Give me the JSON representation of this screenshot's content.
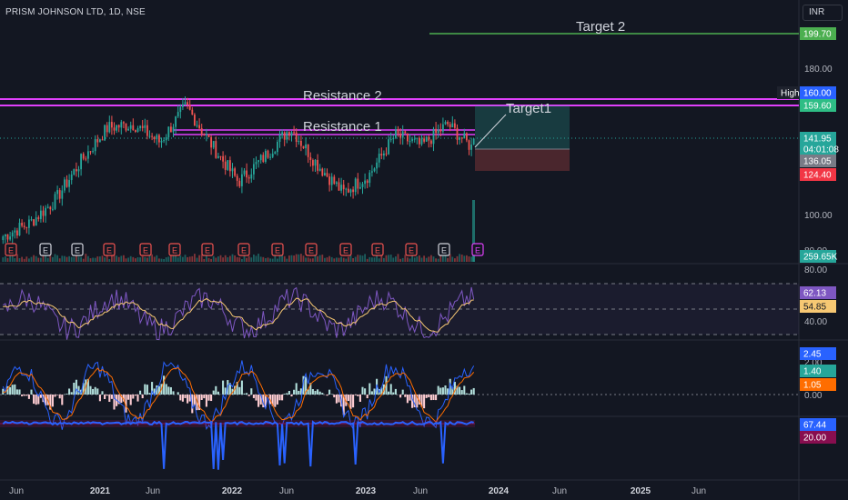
{
  "header": {
    "title": "PRISM JOHNSON LTD, 1D, NSE",
    "currency": "INR"
  },
  "colors": {
    "background": "#131722",
    "up": "#26a69a",
    "down": "#ef5350",
    "resistance": "#e040fb",
    "target": "#4caf50",
    "rsi": "#7e57c2",
    "rsi_ma": "#f7c873",
    "macd_line": "#2962ff",
    "signal_line": "#ff6d00",
    "adx": "#2962ff"
  },
  "annotations": {
    "target2": "Target 2",
    "resistance2": "Resistance 2",
    "resistance1": "Resistance 1",
    "target1": "Target1"
  },
  "earnings_markers": [
    "E",
    "E",
    "E",
    "E",
    "E",
    "E",
    "E",
    "E",
    "E",
    "E",
    "E",
    "E",
    "E",
    "E",
    "E"
  ],
  "price_axis": {
    "ticks": [
      "180.00",
      "100.00",
      "80.00"
    ],
    "badges": [
      {
        "label": "199.70",
        "color": "#4caf50"
      },
      {
        "label": "High",
        "color": "#1e222d"
      },
      {
        "label": "160.00",
        "color": "#2962ff"
      },
      {
        "label": "159.60",
        "color": "#2ebd85"
      },
      {
        "label": "141.95",
        "color": "#26a69a"
      },
      {
        "label": "04:01:08",
        "color": "#26a69a"
      },
      {
        "label": "136.05",
        "color": "#787b86"
      },
      {
        "label": "124.40",
        "color": "#f23645"
      },
      {
        "label": "259.65K",
        "color": "#26a69a"
      }
    ]
  },
  "rsi_axis": {
    "ticks": [
      "80.00",
      "40.00"
    ],
    "badges": [
      {
        "label": "62.13",
        "color": "#7e57c2"
      },
      {
        "label": "54.85",
        "color": "#f7c873"
      }
    ]
  },
  "macd_axis": {
    "ticks": [
      "2.00",
      "0.00"
    ],
    "badges": [
      {
        "label": "2.45",
        "color": "#2962ff"
      },
      {
        "label": "1.40",
        "color": "#26a69a"
      },
      {
        "label": "1.05",
        "color": "#ff6d00"
      }
    ]
  },
  "adx_axis": {
    "badges": [
      {
        "label": "67.44",
        "color": "#2962ff"
      },
      {
        "label": "20.00",
        "color": "#880e4f"
      }
    ]
  },
  "time_axis": [
    "Jun",
    "2021",
    "Jun",
    "2022",
    "Jun",
    "2023",
    "Jun",
    "2024",
    "Jun",
    "2025",
    "Jun"
  ],
  "chart_data": {
    "type": "line",
    "title": "PRISM JOHNSON LTD, 1D, NSE",
    "xlabel": "",
    "ylabel": "INR",
    "x": [
      "2020-06",
      "2020-09",
      "2021-01",
      "2021-03",
      "2021-06",
      "2021-08",
      "2021-11",
      "2022-01",
      "2022-03",
      "2022-06",
      "2022-08",
      "2022-11",
      "2023-01",
      "2023-03",
      "2023-05",
      "2023-08",
      "2023-09",
      "2023-10",
      "2023-11"
    ],
    "series": [
      {
        "name": "",
        "values": [
          88,
          95,
          108,
          130,
          148,
          150,
          140,
          160,
          138,
          118,
          132,
          148,
          128,
          112,
          122,
          144,
          138,
          150,
          136
        ]
      }
    ],
    "levels": {
      "target_2": 199.7,
      "resistance_2": 160.0,
      "resistance_1": 150,
      "last_price": 141.95,
      "entry": 136.05,
      "stop": 124.4
    },
    "ylim": [
      80,
      205
    ],
    "indicators": {
      "volume_last": "259.65K",
      "rsi": 62.13,
      "rsi_ma": 54.85,
      "macd": 2.45,
      "macd_hist": 1.4,
      "macd_signal": 1.05,
      "adx": 67.44,
      "adx_threshold": 20.0
    }
  }
}
